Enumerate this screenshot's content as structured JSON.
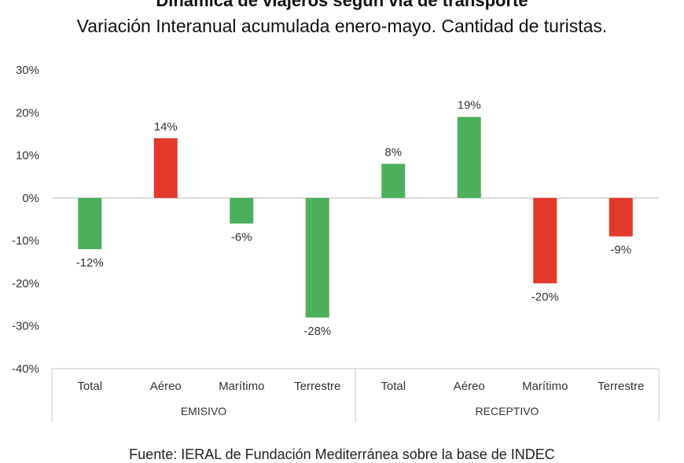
{
  "header": {
    "title": "Dinámica de viajeros según vía de transporte",
    "subtitle": "Variación Interanual acumulada enero-mayo. Cantidad de turistas."
  },
  "footer": {
    "source": "Fuente: IERAL de Fundación Mediterránea sobre la base de INDEC"
  },
  "colors": {
    "positive_green": "#4caf5c",
    "negative_red": "#e2392b",
    "axis": "#c8c8c8",
    "text": "#333333"
  },
  "chart_data": {
    "type": "bar",
    "groups": [
      {
        "name": "EMISIVO",
        "categories": [
          "Total",
          "Aéreo",
          "Marítimo",
          "Terrestre"
        ],
        "values": [
          -12,
          14,
          -6,
          -28
        ],
        "labels": [
          "-12%",
          "14%",
          "-6%",
          "-28%"
        ],
        "colors": [
          "green",
          "red",
          "green",
          "green"
        ]
      },
      {
        "name": "RECEPTIVO",
        "categories": [
          "Total",
          "Aéreo",
          "Marítimo",
          "Terrestre"
        ],
        "values": [
          8,
          19,
          -20,
          -9
        ],
        "labels": [
          "8%",
          "19%",
          "-20%",
          "-9%"
        ],
        "colors": [
          "green",
          "green",
          "red",
          "red"
        ]
      }
    ],
    "yticks": [
      {
        "value": 30,
        "label": "30%"
      },
      {
        "value": 20,
        "label": "20%"
      },
      {
        "value": 10,
        "label": "10%"
      },
      {
        "value": 0,
        "label": "0%"
      },
      {
        "value": -10,
        "label": "-10%"
      },
      {
        "value": -20,
        "label": "-20%"
      },
      {
        "value": -30,
        "label": "-30%"
      },
      {
        "value": -40,
        "label": "-40%"
      }
    ],
    "ylim": [
      -40,
      30
    ],
    "grid": false,
    "legend": "none"
  }
}
